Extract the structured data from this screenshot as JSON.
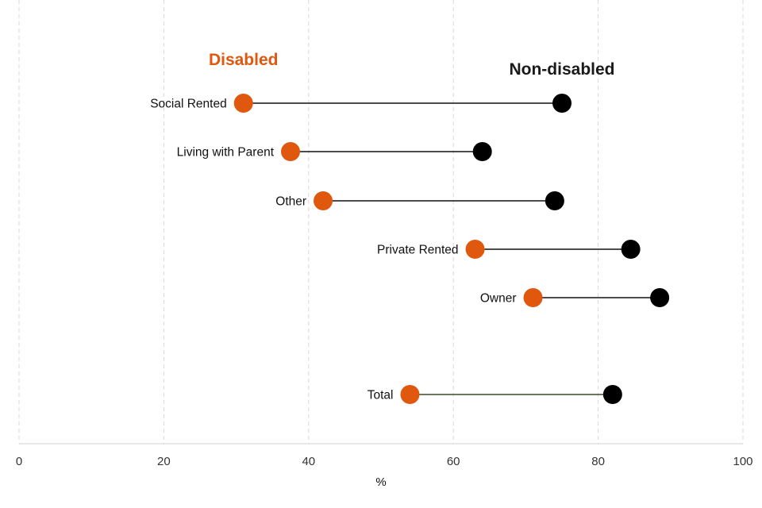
{
  "chart_data": {
    "type": "dumbbell",
    "xlabel": "%",
    "xlim": [
      0,
      100
    ],
    "xticks": [
      0,
      20,
      40,
      60,
      80,
      100
    ],
    "grid": "vertical dashed",
    "series": [
      {
        "name": "Disabled",
        "color": "#E0570E"
      },
      {
        "name": "Non-disabled",
        "color": "#000000"
      }
    ],
    "rows": [
      {
        "category": "Social Rented",
        "disabled": 31,
        "non_disabled": 75
      },
      {
        "category": "Living with Parent",
        "disabled": 37.5,
        "non_disabled": 64
      },
      {
        "category": "Other",
        "disabled": 42,
        "non_disabled": 74
      },
      {
        "category": "Private Rented",
        "disabled": 63,
        "non_disabled": 84.5
      },
      {
        "category": "Owner",
        "disabled": 71,
        "non_disabled": 88.5
      },
      {
        "category": "Total",
        "disabled": 54,
        "non_disabled": 82
      }
    ]
  }
}
